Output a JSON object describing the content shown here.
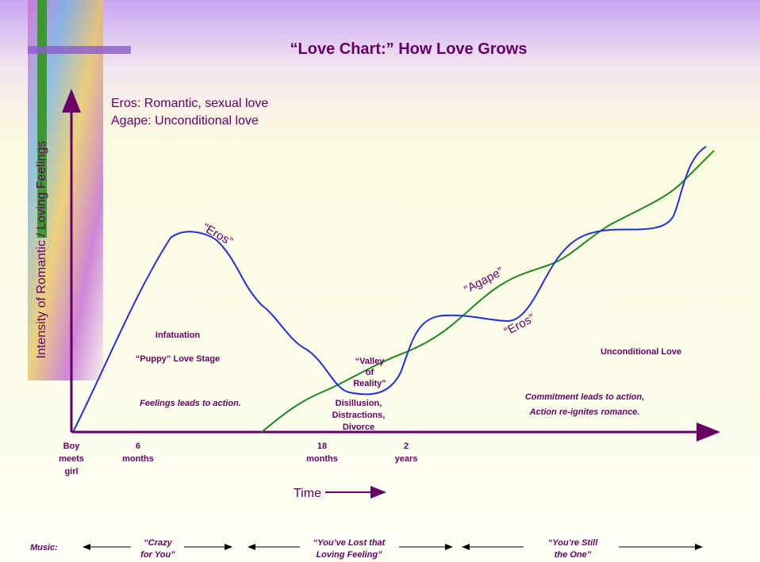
{
  "header": {
    "title": "“Love Chart:” How Love Grows"
  },
  "legend": [
    "Eros:  Romantic, sexual love",
    "Agape:  Unconditional love"
  ],
  "y_axis_label": "Intensity of Romantic / Loving Feelings",
  "x_axis_label": "Time",
  "x_ticks": [
    [
      "Boy",
      "meets",
      "girl"
    ],
    [
      "6",
      "months"
    ],
    [
      "18",
      "months"
    ],
    [
      "2",
      "years"
    ]
  ],
  "curve_labels": [
    "“Eros”",
    "“Agape”",
    "“Eros”"
  ],
  "annotations": {
    "infatuation": "Infatuation",
    "puppy_love": "“Puppy” Love Stage",
    "feelings": "Feelings leads to action.",
    "valley": [
      "“Valley",
      "of",
      "Reality”"
    ],
    "disillusion": [
      "Disillusion,",
      "Distractions,",
      "Divorce"
    ],
    "unconditional": "Unconditional Love",
    "commitment": [
      "Commitment leads to action,",
      "Action re-ignites romance."
    ]
  },
  "music": {
    "label": "Music:",
    "songs": [
      [
        "“Crazy",
        "for You”"
      ],
      [
        "“You’ve Lost that",
        "Loving Feeling”"
      ],
      [
        "“You’re Still",
        "the One”"
      ]
    ]
  }
}
